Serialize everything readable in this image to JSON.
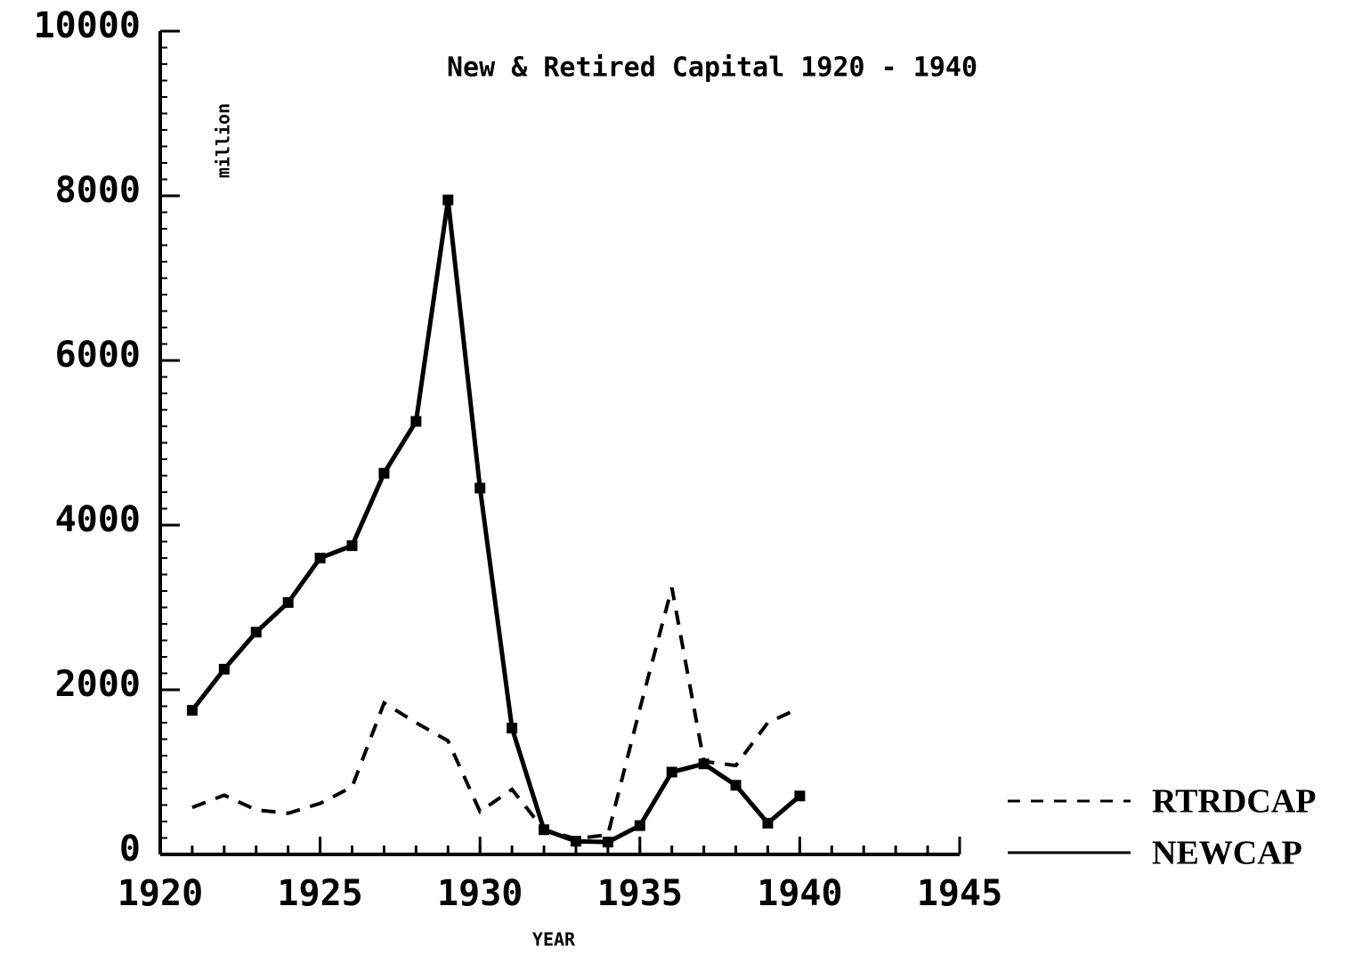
{
  "chart_data": {
    "type": "line",
    "title": "New & Retired Capital 1920 - 1940",
    "y_label": "million",
    "x_label": "YEAR",
    "x": [
      1921,
      1922,
      1923,
      1924,
      1925,
      1926,
      1927,
      1928,
      1929,
      1930,
      1931,
      1932,
      1933,
      1934,
      1935,
      1936,
      1937,
      1938,
      1939,
      1940
    ],
    "series": [
      {
        "name": "RTRDCAP",
        "color": "#000000",
        "style": "dashed",
        "markers": false,
        "values": [
          570,
          720,
          540,
          500,
          620,
          820,
          1840,
          1600,
          1380,
          520,
          790,
          300,
          190,
          240,
          1770,
          3240,
          1130,
          1080,
          1600,
          1780
        ]
      },
      {
        "name": "NEWCAP",
        "color": "#000000",
        "style": "solid",
        "markers": true,
        "values": [
          1750,
          2250,
          2700,
          3060,
          3600,
          3750,
          4630,
          5260,
          7950,
          4450,
          1535,
          300,
          160,
          150,
          350,
          1000,
          1100,
          840,
          380,
          710
        ]
      }
    ],
    "xlim": [
      1920,
      1945
    ],
    "xticks": [
      1920,
      1925,
      1930,
      1935,
      1940,
      1945
    ],
    "ylim": [
      0,
      10000
    ],
    "yticks": [
      0,
      2000,
      4000,
      6000,
      8000,
      10000
    ],
    "grid": false,
    "legend": "right"
  }
}
